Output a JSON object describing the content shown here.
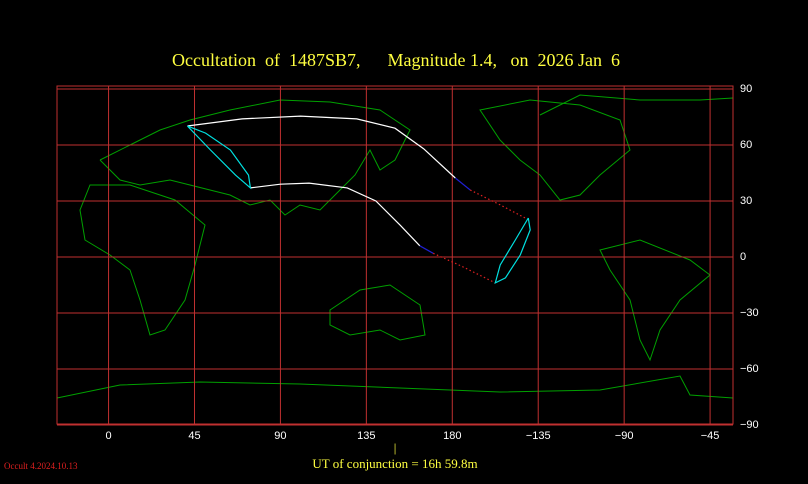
{
  "chart_data": {
    "type": "map",
    "title": "Occultation  of  1487SB7,      Magnitude 1.4,   on  2026 Jan  6",
    "footer": "UT of conjunction = 16h 59.8m",
    "marker": "|",
    "version": "Occult 4.2024.10.13",
    "xlim": [
      -27,
      327
    ],
    "ylim": [
      -90,
      90
    ],
    "xticks": [
      0,
      45,
      90,
      135,
      180,
      {
        "value": 225,
        "label": "−135"
      },
      {
        "value": 270,
        "label": "−90"
      },
      {
        "value": 315,
        "label": "−45"
      }
    ],
    "yticks": [
      90,
      60,
      30,
      0,
      {
        "value": -30,
        "label": "−30"
      },
      {
        "value": -60,
        "label": "−60"
      },
      {
        "value": -90,
        "label": "−90"
      }
    ],
    "grid": true,
    "grid_color": "#c03030",
    "series": [
      {
        "color": "#ffffff",
        "dotted": false,
        "x": [
          41.3,
          70,
          100.5,
          130,
          150,
          165,
          181.6
        ],
        "y": [
          70.2,
          74,
          75.5,
          74,
          69,
          58,
          42.3
        ]
      },
      {
        "color": "#2020d0",
        "dotted": false,
        "x": [
          181.6,
          189.4
        ],
        "y": [
          42.3,
          35.9
        ]
      },
      {
        "color": "#e02020",
        "dotted": true,
        "x": [
          189.4,
          205.1,
          218.2
        ],
        "y": [
          35.9,
          27.9,
          20.9
        ]
      },
      {
        "color": "#ffffff",
        "dotted": false,
        "x": [
          74.3,
          90,
          105,
          125,
          140,
          152.8,
          163
        ],
        "y": [
          37,
          39,
          39.6,
          37,
          30,
          17,
          6
        ]
      },
      {
        "color": "#2020d0",
        "dotted": false,
        "x": [
          163,
          170
        ],
        "y": [
          6,
          2
        ]
      },
      {
        "color": "#e02020",
        "dotted": true,
        "x": [
          170,
          185,
          202.5
        ],
        "y": [
          2,
          -5,
          -13.9
        ]
      },
      {
        "color": "#00e0e0",
        "dotted": false,
        "x": [
          41.3,
          53.4,
          66.5,
          74.3,
          73.3,
          63.8,
          50.8,
          41.3
        ],
        "y": [
          70.2,
          57.3,
          43.9,
          37,
          43.9,
          57.3,
          66.4,
          70.2
        ]
      },
      {
        "color": "#00e0e0",
        "dotted": false,
        "x": [
          219.8,
          213,
          205.1,
          202.5,
          207.8,
          215.6,
          220.8,
          219.8
        ],
        "y": [
          20.9,
          9.1,
          -4.3,
          -13.9,
          -11.2,
          1.1,
          14.5,
          20.9
        ]
      }
    ]
  }
}
